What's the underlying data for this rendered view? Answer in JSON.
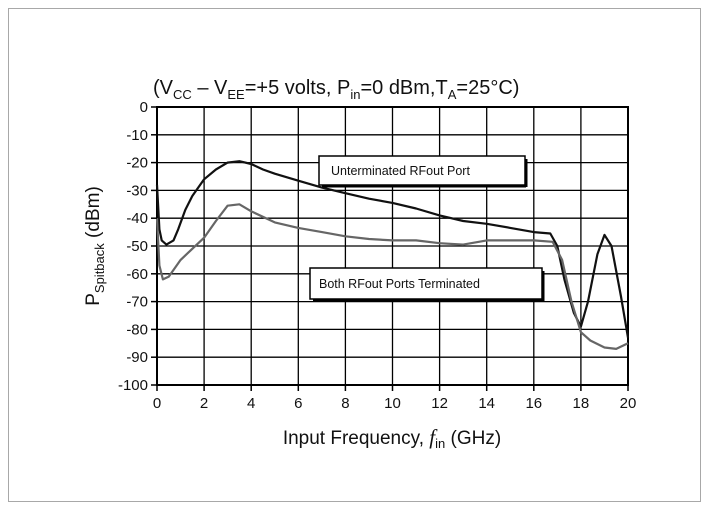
{
  "chart_data": {
    "type": "line",
    "title": {
      "prefix": "(V",
      "vcc_sub": "CC",
      "mid1": " – V",
      "vee_sub": "EE",
      "mid2": "=+5 volts, P",
      "pin_sub": "in",
      "mid3": "=0 dBm,T",
      "ta_sub": "A",
      "suffix": "=25°C)"
    },
    "xlabel": {
      "main": "Input Frequency, ",
      "italic": "f",
      "sub": "in",
      "unit": " (GHz)"
    },
    "ylabel": {
      "main": "P",
      "sub": "Spitback",
      "unit": " (dBm)"
    },
    "xlim": [
      0,
      20
    ],
    "ylim": [
      -100,
      0
    ],
    "xticks": [
      0,
      2,
      4,
      6,
      8,
      10,
      12,
      14,
      16,
      18,
      20
    ],
    "yticks": [
      0,
      -10,
      -20,
      -30,
      -40,
      -50,
      -60,
      -70,
      -80,
      -90,
      -100
    ],
    "grid": true,
    "series": [
      {
        "name": "Unterminated RFout Port",
        "color": "#111111",
        "points": [
          [
            0.0,
            -28
          ],
          [
            0.05,
            -36
          ],
          [
            0.1,
            -44
          ],
          [
            0.2,
            -48
          ],
          [
            0.4,
            -49.5
          ],
          [
            0.7,
            -48
          ],
          [
            0.9,
            -44
          ],
          [
            1.2,
            -37
          ],
          [
            1.5,
            -32
          ],
          [
            2.0,
            -26
          ],
          [
            2.5,
            -22.5
          ],
          [
            3.0,
            -20
          ],
          [
            3.5,
            -19.5
          ],
          [
            4.0,
            -20.5
          ],
          [
            4.5,
            -22.5
          ],
          [
            5.0,
            -24
          ],
          [
            6.0,
            -26.5
          ],
          [
            7.0,
            -29
          ],
          [
            8.0,
            -31
          ],
          [
            9.0,
            -33
          ],
          [
            10.0,
            -34.5
          ],
          [
            11.0,
            -36.5
          ],
          [
            12.0,
            -39
          ],
          [
            13.0,
            -41
          ],
          [
            14.0,
            -42
          ],
          [
            15.0,
            -43.5
          ],
          [
            16.0,
            -45
          ],
          [
            16.7,
            -45.5
          ],
          [
            17.0,
            -50
          ],
          [
            17.3,
            -62
          ],
          [
            17.7,
            -74
          ],
          [
            18.0,
            -79
          ],
          [
            18.3,
            -70
          ],
          [
            18.7,
            -53
          ],
          [
            19.0,
            -46
          ],
          [
            19.3,
            -50
          ],
          [
            19.7,
            -68
          ],
          [
            20.0,
            -83
          ]
        ]
      },
      {
        "name": "Both RFout Ports Terminated",
        "color": "#666666",
        "points": [
          [
            0.0,
            -40
          ],
          [
            0.1,
            -57
          ],
          [
            0.25,
            -62
          ],
          [
            0.5,
            -61
          ],
          [
            1.0,
            -55
          ],
          [
            1.5,
            -51
          ],
          [
            2.0,
            -47
          ],
          [
            2.5,
            -41
          ],
          [
            3.0,
            -35.5
          ],
          [
            3.5,
            -35
          ],
          [
            4.0,
            -37.5
          ],
          [
            5.0,
            -41.5
          ],
          [
            6.0,
            -43.5
          ],
          [
            7.0,
            -45
          ],
          [
            8.0,
            -46.5
          ],
          [
            9.0,
            -47.5
          ],
          [
            10.0,
            -48
          ],
          [
            11.0,
            -48
          ],
          [
            12.0,
            -49
          ],
          [
            13.0,
            -49.5
          ],
          [
            14.0,
            -48
          ],
          [
            15.0,
            -48
          ],
          [
            16.0,
            -48
          ],
          [
            16.8,
            -48.5
          ],
          [
            17.2,
            -55
          ],
          [
            17.6,
            -70
          ],
          [
            18.0,
            -81
          ],
          [
            18.4,
            -84
          ],
          [
            19.0,
            -86.5
          ],
          [
            19.5,
            -87
          ],
          [
            20.0,
            -85
          ]
        ]
      }
    ],
    "annotations": [
      {
        "text": "Unterminated RFout Port"
      },
      {
        "text": "Both RFout Ports Terminated"
      }
    ]
  }
}
